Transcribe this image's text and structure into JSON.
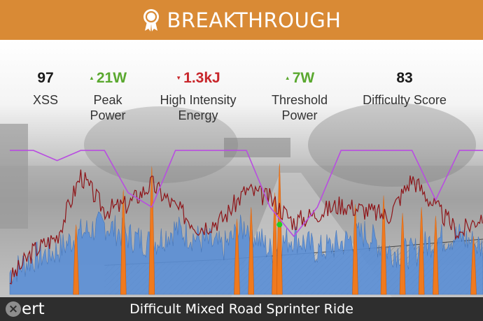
{
  "banner": {
    "title": "BREAKTHROUGH",
    "icon": "award-ribbon-icon",
    "background_color": "#d98a35"
  },
  "stats": [
    {
      "value": "97",
      "label_line1": "XSS",
      "label_line2": "",
      "trend": "none"
    },
    {
      "value": "21W",
      "label_line1": "Peak",
      "label_line2": "Power",
      "trend": "up"
    },
    {
      "value": "1.3kJ",
      "label_line1": "High Intensity",
      "label_line2": "Energy",
      "trend": "down"
    },
    {
      "value": "7W",
      "label_line1": "Threshold",
      "label_line2": "Power",
      "trend": "up"
    },
    {
      "value": "83",
      "label_line1": "Difficulty Score",
      "label_line2": "",
      "trend": "none"
    }
  ],
  "colors": {
    "trend_up": "#5aa82f",
    "trend_down": "#c8262b",
    "power_fill": "#5b8fd6",
    "high_intensity_spike": "#f07a1e",
    "heart_rate_line": "#8e1418",
    "signature_line": "#b84ee0",
    "breakthrough_marker": "#22cc22"
  },
  "chart_data": {
    "type": "area",
    "x": [
      0,
      5,
      10,
      15,
      20,
      25,
      30,
      35,
      40,
      45,
      50,
      55,
      60,
      65,
      70,
      75,
      80,
      85,
      90,
      95,
      100
    ],
    "series": [
      {
        "values": [
          15,
          25,
          30,
          42,
          48,
          40,
          35,
          45,
          38,
          32,
          48,
          30,
          40,
          30,
          35,
          42,
          30,
          28,
          38,
          40,
          32
        ]
      },
      {
        "values": [
          10,
          30,
          40,
          82,
          58,
          62,
          76,
          60,
          46,
          52,
          72,
          66,
          50,
          56,
          62,
          58,
          54,
          80,
          60,
          42,
          55
        ]
      },
      {
        "values": [
          99,
          99,
          92,
          99,
          99,
          70,
          60,
          99,
          99,
          99,
          99,
          60,
          40,
          60,
          99,
          99,
          99,
          99,
          65,
          99,
          99
        ]
      }
    ],
    "spike_positions": [
      14,
      24,
      30,
      48,
      51,
      56,
      57,
      73,
      79,
      83,
      87,
      90,
      98
    ]
  },
  "footer": {
    "logo_text": "ert",
    "logo_mark": "x-logo-icon",
    "title": "Difficult Mixed Road Sprinter Ride"
  }
}
